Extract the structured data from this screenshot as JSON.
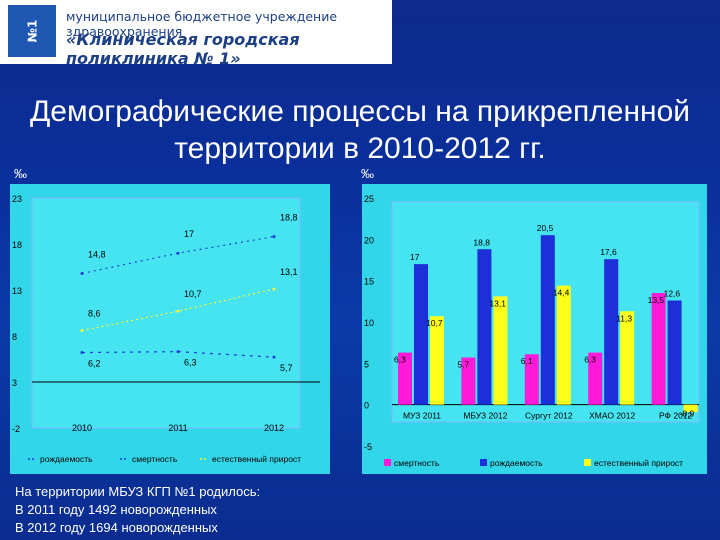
{
  "logo": {
    "badge_text": "№1",
    "line1": "муниципальное бюджетное учреждение здравоохранения",
    "line2": "«Клиническая городская поликлиника № 1»"
  },
  "slide": {
    "title_line1": "Демографические процессы на прикрепленной",
    "title_line2": "территории в 2010-2012 гг.",
    "unit_left": "‰",
    "unit_right": "‰"
  },
  "footer": {
    "line1": "На территории МБУЗ КГП №1 родилось:",
    "line2": "В 2011 году 1492  новорожденных",
    "line3": "В 2012 году 1694  новорожденных"
  },
  "chart_data": [
    {
      "type": "line",
      "x": [
        "2010",
        "2011",
        "2012"
      ],
      "ylim": [
        -2,
        23
      ],
      "yticks": [
        "23",
        "18",
        "13",
        "8",
        "3",
        "-2"
      ],
      "grid": false,
      "legend_position": "bottom",
      "colors": {
        "rozhdaemost": "#2040d0",
        "smertnost": "#1a3fd4",
        "estestv": "#f6f63a",
        "background": "#31d6e8"
      },
      "series": [
        {
          "name": "рождаемость",
          "values": [
            14.8,
            17,
            18.8
          ],
          "labels": [
            "14,8",
            "17",
            "18,8"
          ]
        },
        {
          "name": "смертность",
          "values": [
            6.2,
            6.3,
            5.7
          ],
          "labels": [
            "6,2",
            "6,3",
            "5,7"
          ]
        },
        {
          "name": "естественный прирост",
          "values": [
            8.6,
            10.7,
            13.1
          ],
          "labels": [
            "8,6",
            "10,7",
            "13,1"
          ]
        }
      ]
    },
    {
      "type": "bar",
      "categories": [
        "МУЗ 2011",
        "МБУЗ 2012",
        "Сургут 2012",
        "ХМАО 2012",
        "РФ 2012"
      ],
      "ylim": [
        -5,
        25
      ],
      "yticks": [
        "25",
        "20",
        "15",
        "10",
        "5",
        "0",
        "-5"
      ],
      "grid": false,
      "legend_position": "bottom",
      "colors": {
        "smertnost": "#ff1ad9",
        "rozhdaemost": "#1d2fd8",
        "estestv": "#ffff1a",
        "background": "#31d6e8"
      },
      "series": [
        {
          "name": "смертность",
          "values": [
            6.3,
            5.7,
            6.1,
            6.3,
            13.5
          ],
          "labels": [
            "6,3",
            "5,7",
            "6,1",
            "6,3",
            "13,5"
          ]
        },
        {
          "name": "рождаемость",
          "values": [
            17,
            18.8,
            20.5,
            17.6,
            12.6
          ],
          "labels": [
            "17",
            "18,8",
            "20,5",
            "17,6",
            "12,6"
          ]
        },
        {
          "name": "естественный прирост",
          "values": [
            10.7,
            13.1,
            14.4,
            11.3,
            -0.9
          ],
          "labels": [
            "10,7",
            "13,1",
            "14,4",
            "11,3",
            "-0,9"
          ]
        }
      ]
    }
  ]
}
